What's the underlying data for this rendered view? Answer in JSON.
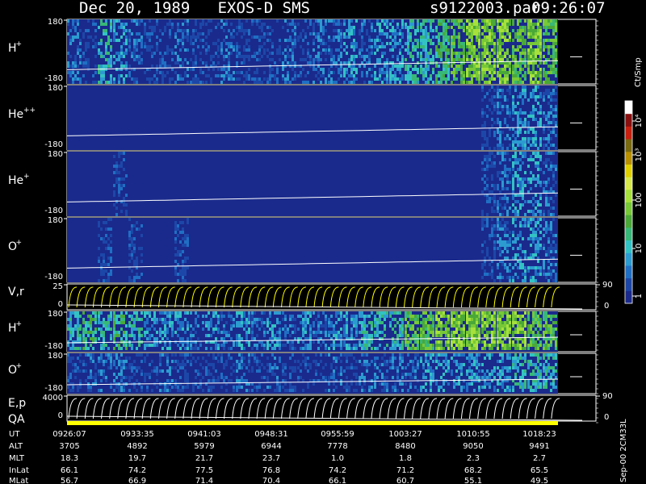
{
  "header": {
    "date_instrument": "Dec 20, 1989   EXOS-D SMS",
    "file": "s9122003.par",
    "time": "09:26:07"
  },
  "colors": {
    "background": "#000000",
    "panel_fill": "#1a2a8c",
    "trace": "#ffffff",
    "yellow": "#ffff00",
    "palette": [
      "#1a2a8c",
      "#1c47a8",
      "#1f6fc4",
      "#2c9bd0",
      "#33c2c4",
      "#38b878",
      "#4aa838",
      "#78c838",
      "#a6e03c",
      "#d6e84c",
      "#e0d000",
      "#b89000",
      "#7a6a10",
      "#c82010",
      "#8a1010",
      "#ffffff"
    ]
  },
  "chart_data": [
    {
      "type": "heatmap",
      "species": "H",
      "charge": "+",
      "ylim": [
        -180,
        180
      ],
      "tick_top": "180",
      "tick_bottom": "-180",
      "activity": [
        2,
        1,
        4,
        3,
        2,
        1,
        1,
        2,
        1,
        1,
        2,
        1,
        1,
        1,
        2,
        1,
        2,
        2,
        3,
        2,
        3,
        3,
        4,
        4,
        5,
        6,
        7,
        7,
        7,
        6,
        7,
        6
      ]
    },
    {
      "type": "heatmap",
      "species": "He",
      "charge": "++",
      "ylim": [
        -180,
        180
      ],
      "tick_top": "180",
      "tick_bottom": "-180",
      "activity": [
        0,
        0,
        0,
        0,
        0,
        0,
        0,
        0,
        0,
        0,
        0,
        0,
        0,
        0,
        0,
        0,
        0,
        0,
        0,
        0,
        0,
        0,
        0,
        0,
        0,
        0,
        0,
        1,
        2,
        3,
        3,
        2
      ]
    },
    {
      "type": "heatmap",
      "species": "He",
      "charge": "+",
      "ylim": [
        -180,
        180
      ],
      "tick_top": "180",
      "tick_bottom": "-180",
      "activity": [
        0,
        0,
        0,
        1,
        0,
        0,
        0,
        0,
        0,
        0,
        0,
        0,
        0,
        0,
        0,
        0,
        0,
        0,
        0,
        0,
        0,
        0,
        0,
        0,
        0,
        0,
        0,
        1,
        2,
        3,
        3,
        2
      ]
    },
    {
      "type": "heatmap",
      "species": "O",
      "charge": "+",
      "ylim": [
        -180,
        180
      ],
      "tick_top": "180",
      "tick_bottom": "-180",
      "activity": [
        0,
        0,
        1,
        0,
        1,
        0,
        0,
        1,
        0,
        0,
        0,
        0,
        0,
        0,
        0,
        0,
        0,
        0,
        0,
        0,
        0,
        0,
        0,
        0,
        0,
        0,
        0,
        1,
        2,
        3,
        3,
        2
      ]
    },
    {
      "type": "line",
      "label": "V,r",
      "ylim": [
        0,
        25
      ],
      "tick_top": "25",
      "tick_bottom": "0",
      "right_top": "90",
      "right_bottom": "0"
    },
    {
      "type": "heatmap",
      "species": "H",
      "charge": "+",
      "ylim": [
        -180,
        180
      ],
      "tick_top": "180",
      "tick_bottom": "-180",
      "activity": [
        4,
        5,
        4,
        5,
        4,
        3,
        3,
        3,
        2,
        3,
        2,
        3,
        2,
        3,
        2,
        3,
        2,
        3,
        3,
        4,
        4,
        4,
        6,
        6,
        7,
        7,
        7,
        7,
        7,
        7,
        6,
        6
      ]
    },
    {
      "type": "heatmap",
      "species": "O",
      "charge": "+",
      "ylim": [
        -180,
        180
      ],
      "tick_top": "180",
      "tick_bottom": "-180",
      "activity": [
        1,
        2,
        2,
        2,
        1,
        1,
        2,
        1,
        1,
        1,
        1,
        2,
        1,
        2,
        1,
        1,
        1,
        2,
        1,
        2,
        2,
        2,
        2,
        3,
        3,
        3,
        3,
        3,
        3,
        4,
        4,
        4
      ]
    },
    {
      "type": "line",
      "label": "E,p",
      "ylim": [
        0,
        4000
      ],
      "tick_top": "4000",
      "tick_bottom": "0",
      "right_top": "90",
      "right_bottom": "0"
    }
  ],
  "qa_label": "QA",
  "colorbar": {
    "title": "Ct/Smp",
    "labels": [
      "10⁴",
      "10³",
      "100",
      "10",
      "1"
    ]
  },
  "side_text": "Sep-00 2CM33L",
  "time_table": {
    "rows": [
      {
        "name": "UT",
        "values": [
          "0926:07",
          "0933:35",
          "0941:03",
          "0948:31",
          "0955:59",
          "1003:27",
          "1010:55",
          "1018:23"
        ]
      },
      {
        "name": "ALT",
        "values": [
          "3705",
          "4892",
          "5979",
          "6944",
          "7778",
          "8480",
          "9050",
          "9491"
        ]
      },
      {
        "name": "MLT",
        "values": [
          "18.3",
          "19.7",
          "21.7",
          "23.7",
          "1.0",
          "1.8",
          "2.3",
          "2.7"
        ]
      },
      {
        "name": "InLat",
        "values": [
          "66.1",
          "74.2",
          "77.5",
          "76.8",
          "74.2",
          "71.2",
          "68.2",
          "65.5"
        ]
      },
      {
        "name": "MLat",
        "values": [
          "56.7",
          "66.9",
          "71.4",
          "70.4",
          "66.1",
          "60.7",
          "55.1",
          "49.5"
        ]
      }
    ]
  }
}
